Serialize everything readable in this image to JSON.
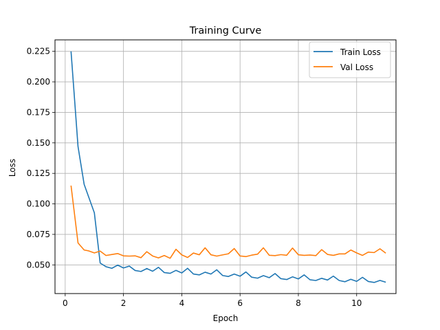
{
  "chart_data": {
    "type": "line",
    "title": "Training Curve",
    "xlabel": "Epoch",
    "ylabel": "Loss",
    "xlim": [
      -0.35,
      11.35
    ],
    "ylim": [
      0.0265,
      0.2344
    ],
    "xticks": [
      0,
      2,
      4,
      6,
      8,
      10
    ],
    "xtick_labels": [
      "0",
      "2",
      "4",
      "6",
      "8",
      "10"
    ],
    "yticks": [
      0.05,
      0.075,
      0.1,
      0.125,
      0.15,
      0.175,
      0.2,
      0.225
    ],
    "ytick_labels": [
      "0.050",
      "0.075",
      "0.100",
      "0.125",
      "0.150",
      "0.175",
      "0.200",
      "0.225"
    ],
    "grid": true,
    "legend_position": "top-right",
    "x": [
      0.2,
      0.44,
      0.65,
      0.8,
      1.0,
      1.2,
      1.4,
      1.6,
      1.8,
      2.0,
      2.2,
      2.4,
      2.6,
      2.8,
      3.0,
      3.2,
      3.4,
      3.6,
      3.8,
      4.0,
      4.2,
      4.4,
      4.6,
      4.8,
      5.0,
      5.2,
      5.4,
      5.6,
      5.8,
      6.0,
      6.2,
      6.4,
      6.6,
      6.8,
      7.0,
      7.2,
      7.4,
      7.6,
      7.8,
      8.0,
      8.2,
      8.4,
      8.6,
      8.8,
      9.0,
      9.2,
      9.4,
      9.6,
      9.8,
      10.0,
      10.2,
      10.4,
      10.6,
      10.8,
      11.0
    ],
    "series": [
      {
        "name": "Train Loss",
        "color": "#1f77b4",
        "values": [
          0.225,
          0.147,
          0.116,
          0.106,
          0.0927,
          0.0515,
          0.0485,
          0.0472,
          0.0498,
          0.0475,
          0.049,
          0.0454,
          0.0446,
          0.047,
          0.0448,
          0.048,
          0.0437,
          0.0431,
          0.0455,
          0.0434,
          0.0472,
          0.0425,
          0.0418,
          0.044,
          0.0425,
          0.046,
          0.0413,
          0.0405,
          0.0425,
          0.0407,
          0.0442,
          0.0399,
          0.0391,
          0.0412,
          0.0395,
          0.0429,
          0.0387,
          0.038,
          0.0402,
          0.0385,
          0.0418,
          0.0378,
          0.0372,
          0.039,
          0.0376,
          0.0408,
          0.0372,
          0.0362,
          0.0382,
          0.0365,
          0.0398,
          0.0364,
          0.0356,
          0.0373,
          0.0358
        ]
      },
      {
        "name": "Val Loss",
        "color": "#ff7f0e",
        "values": [
          0.115,
          0.068,
          0.0622,
          0.0615,
          0.0598,
          0.0613,
          0.0577,
          0.0585,
          0.0593,
          0.0574,
          0.0572,
          0.0574,
          0.0559,
          0.0608,
          0.0573,
          0.0557,
          0.0577,
          0.0554,
          0.0628,
          0.0582,
          0.0561,
          0.0597,
          0.0583,
          0.064,
          0.0583,
          0.0572,
          0.0582,
          0.0591,
          0.0634,
          0.0573,
          0.0568,
          0.058,
          0.0588,
          0.064,
          0.0579,
          0.0576,
          0.0584,
          0.0579,
          0.0638,
          0.0583,
          0.0578,
          0.0581,
          0.0576,
          0.0625,
          0.0586,
          0.0578,
          0.059,
          0.059,
          0.0622,
          0.0598,
          0.0578,
          0.0605,
          0.0601,
          0.0632,
          0.0596
        ]
      }
    ]
  }
}
